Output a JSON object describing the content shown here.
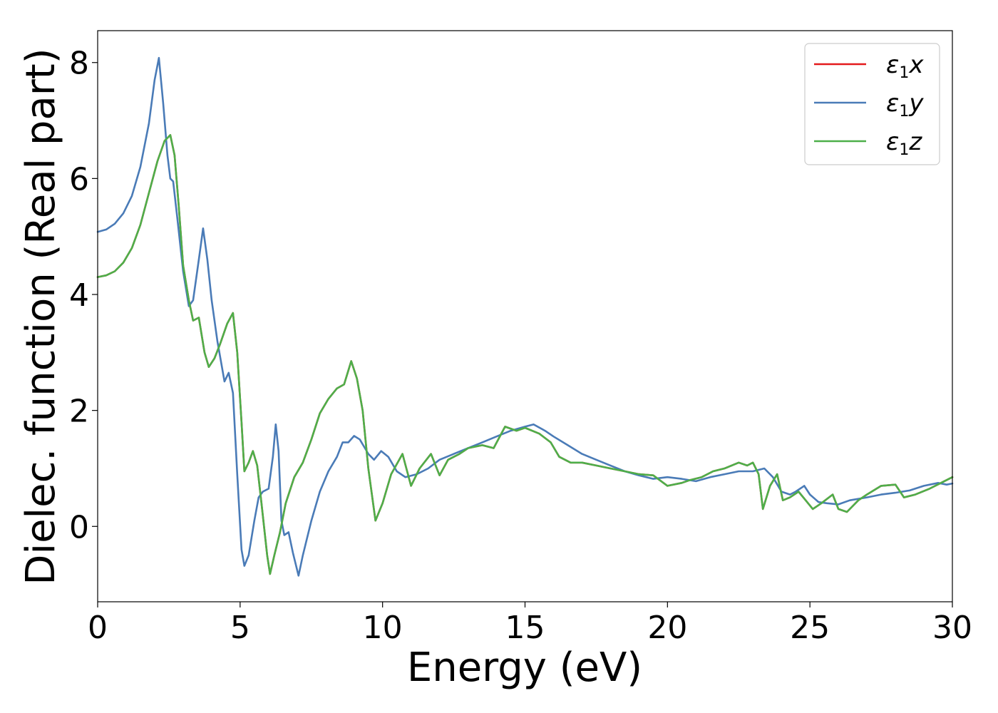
{
  "chart_data": {
    "type": "line",
    "xlabel": "Energy (eV)",
    "ylabel": "Dielec. function (Real part)",
    "xlim": [
      0,
      30
    ],
    "ylim": [
      -1.3,
      8.55
    ],
    "xticks": [
      0,
      5,
      10,
      15,
      20,
      25,
      30
    ],
    "yticks": [
      0,
      2,
      4,
      6,
      8
    ],
    "grid": false,
    "legend_position": "top-right",
    "series": [
      {
        "name": "ε1x",
        "legend_base": "ε",
        "legend_sub": "1",
        "legend_var": "x",
        "color": "#e41a1c",
        "ref": "s2"
      },
      {
        "name": "ε1y",
        "legend_base": "ε",
        "legend_sub": "1",
        "legend_var": "y",
        "color": "#4a7bb7",
        "points": [
          [
            0,
            5.08
          ],
          [
            0.3,
            5.12
          ],
          [
            0.6,
            5.22
          ],
          [
            0.9,
            5.4
          ],
          [
            1.2,
            5.7
          ],
          [
            1.5,
            6.2
          ],
          [
            1.8,
            6.95
          ],
          [
            2.0,
            7.7
          ],
          [
            2.15,
            8.08
          ],
          [
            2.3,
            7.3
          ],
          [
            2.45,
            6.4
          ],
          [
            2.55,
            6.0
          ],
          [
            2.65,
            5.95
          ],
          [
            2.8,
            5.3
          ],
          [
            3.0,
            4.4
          ],
          [
            3.2,
            3.8
          ],
          [
            3.35,
            3.9
          ],
          [
            3.55,
            4.6
          ],
          [
            3.7,
            5.14
          ],
          [
            3.85,
            4.6
          ],
          [
            4.0,
            3.9
          ],
          [
            4.2,
            3.2
          ],
          [
            4.45,
            2.5
          ],
          [
            4.6,
            2.65
          ],
          [
            4.75,
            2.3
          ],
          [
            4.9,
            0.9
          ],
          [
            5.05,
            -0.4
          ],
          [
            5.15,
            -0.68
          ],
          [
            5.3,
            -0.5
          ],
          [
            5.5,
            0.1
          ],
          [
            5.65,
            0.5
          ],
          [
            5.8,
            0.6
          ],
          [
            6.0,
            0.65
          ],
          [
            6.15,
            1.2
          ],
          [
            6.25,
            1.76
          ],
          [
            6.35,
            1.3
          ],
          [
            6.45,
            0.1
          ],
          [
            6.55,
            -0.15
          ],
          [
            6.7,
            -0.1
          ],
          [
            6.85,
            -0.45
          ],
          [
            7.05,
            -0.85
          ],
          [
            7.2,
            -0.5
          ],
          [
            7.5,
            0.1
          ],
          [
            7.8,
            0.6
          ],
          [
            8.1,
            0.95
          ],
          [
            8.4,
            1.2
          ],
          [
            8.6,
            1.45
          ],
          [
            8.8,
            1.45
          ],
          [
            9.0,
            1.56
          ],
          [
            9.2,
            1.5
          ],
          [
            9.5,
            1.25
          ],
          [
            9.7,
            1.15
          ],
          [
            9.95,
            1.3
          ],
          [
            10.2,
            1.2
          ],
          [
            10.5,
            0.95
          ],
          [
            10.8,
            0.85
          ],
          [
            11.2,
            0.9
          ],
          [
            11.6,
            1.0
          ],
          [
            12.0,
            1.15
          ],
          [
            12.5,
            1.25
          ],
          [
            13.0,
            1.35
          ],
          [
            13.5,
            1.45
          ],
          [
            14.0,
            1.55
          ],
          [
            14.5,
            1.65
          ],
          [
            15.0,
            1.72
          ],
          [
            15.3,
            1.76
          ],
          [
            15.7,
            1.65
          ],
          [
            16.0,
            1.55
          ],
          [
            16.5,
            1.4
          ],
          [
            17.0,
            1.25
          ],
          [
            17.5,
            1.15
          ],
          [
            18.0,
            1.05
          ],
          [
            18.5,
            0.95
          ],
          [
            19.0,
            0.88
          ],
          [
            19.5,
            0.82
          ],
          [
            20.0,
            0.85
          ],
          [
            20.5,
            0.82
          ],
          [
            21.0,
            0.78
          ],
          [
            21.5,
            0.85
          ],
          [
            22.0,
            0.9
          ],
          [
            22.5,
            0.95
          ],
          [
            23.0,
            0.95
          ],
          [
            23.4,
            1.0
          ],
          [
            23.7,
            0.85
          ],
          [
            24.0,
            0.6
          ],
          [
            24.3,
            0.55
          ],
          [
            24.5,
            0.6
          ],
          [
            24.8,
            0.7
          ],
          [
            25.0,
            0.55
          ],
          [
            25.3,
            0.42
          ],
          [
            25.6,
            0.4
          ],
          [
            26.0,
            0.38
          ],
          [
            26.4,
            0.45
          ],
          [
            27.0,
            0.5
          ],
          [
            27.5,
            0.55
          ],
          [
            28.0,
            0.58
          ],
          [
            28.5,
            0.62
          ],
          [
            29.0,
            0.7
          ],
          [
            29.5,
            0.75
          ],
          [
            29.8,
            0.72
          ],
          [
            30.0,
            0.74
          ]
        ]
      },
      {
        "name": "ε1z",
        "legend_base": "ε",
        "legend_sub": "1",
        "legend_var": "z",
        "color": "#4daf4a",
        "points": [
          [
            0,
            4.3
          ],
          [
            0.3,
            4.33
          ],
          [
            0.6,
            4.4
          ],
          [
            0.9,
            4.55
          ],
          [
            1.2,
            4.8
          ],
          [
            1.5,
            5.2
          ],
          [
            1.8,
            5.75
          ],
          [
            2.1,
            6.3
          ],
          [
            2.35,
            6.65
          ],
          [
            2.55,
            6.75
          ],
          [
            2.7,
            6.4
          ],
          [
            2.85,
            5.5
          ],
          [
            3.0,
            4.5
          ],
          [
            3.2,
            3.9
          ],
          [
            3.35,
            3.55
          ],
          [
            3.55,
            3.6
          ],
          [
            3.75,
            3.0
          ],
          [
            3.9,
            2.75
          ],
          [
            4.1,
            2.9
          ],
          [
            4.3,
            3.15
          ],
          [
            4.55,
            3.5
          ],
          [
            4.75,
            3.68
          ],
          [
            4.9,
            3.0
          ],
          [
            5.05,
            1.8
          ],
          [
            5.15,
            0.95
          ],
          [
            5.3,
            1.1
          ],
          [
            5.45,
            1.3
          ],
          [
            5.6,
            1.05
          ],
          [
            5.75,
            0.4
          ],
          [
            5.95,
            -0.5
          ],
          [
            6.05,
            -0.82
          ],
          [
            6.2,
            -0.5
          ],
          [
            6.4,
            -0.1
          ],
          [
            6.6,
            0.4
          ],
          [
            6.9,
            0.85
          ],
          [
            7.2,
            1.1
          ],
          [
            7.5,
            1.5
          ],
          [
            7.8,
            1.95
          ],
          [
            8.1,
            2.2
          ],
          [
            8.4,
            2.38
          ],
          [
            8.65,
            2.45
          ],
          [
            8.9,
            2.85
          ],
          [
            9.1,
            2.55
          ],
          [
            9.3,
            2.0
          ],
          [
            9.5,
            1.0
          ],
          [
            9.75,
            0.1
          ],
          [
            10.0,
            0.4
          ],
          [
            10.3,
            0.9
          ],
          [
            10.7,
            1.25
          ],
          [
            11.0,
            0.7
          ],
          [
            11.3,
            1.0
          ],
          [
            11.7,
            1.25
          ],
          [
            12.0,
            0.88
          ],
          [
            12.3,
            1.15
          ],
          [
            12.7,
            1.25
          ],
          [
            13.0,
            1.35
          ],
          [
            13.5,
            1.4
          ],
          [
            13.9,
            1.35
          ],
          [
            14.3,
            1.72
          ],
          [
            14.7,
            1.65
          ],
          [
            15.0,
            1.7
          ],
          [
            15.5,
            1.6
          ],
          [
            15.9,
            1.45
          ],
          [
            16.2,
            1.2
          ],
          [
            16.6,
            1.1
          ],
          [
            17.0,
            1.1
          ],
          [
            17.5,
            1.05
          ],
          [
            18.0,
            1.0
          ],
          [
            18.5,
            0.95
          ],
          [
            19.0,
            0.9
          ],
          [
            19.5,
            0.88
          ],
          [
            20.0,
            0.7
          ],
          [
            20.5,
            0.75
          ],
          [
            20.8,
            0.8
          ],
          [
            21.2,
            0.85
          ],
          [
            21.6,
            0.95
          ],
          [
            22.0,
            1.0
          ],
          [
            22.5,
            1.1
          ],
          [
            22.8,
            1.05
          ],
          [
            23.0,
            1.1
          ],
          [
            23.2,
            0.9
          ],
          [
            23.35,
            0.3
          ],
          [
            23.6,
            0.7
          ],
          [
            23.85,
            0.9
          ],
          [
            24.05,
            0.45
          ],
          [
            24.3,
            0.5
          ],
          [
            24.6,
            0.6
          ],
          [
            24.85,
            0.45
          ],
          [
            25.1,
            0.3
          ],
          [
            25.4,
            0.4
          ],
          [
            25.8,
            0.55
          ],
          [
            26.0,
            0.3
          ],
          [
            26.3,
            0.25
          ],
          [
            26.7,
            0.45
          ],
          [
            27.0,
            0.55
          ],
          [
            27.5,
            0.7
          ],
          [
            28.0,
            0.72
          ],
          [
            28.3,
            0.5
          ],
          [
            28.7,
            0.55
          ],
          [
            29.2,
            0.65
          ],
          [
            29.6,
            0.75
          ],
          [
            30.0,
            0.85
          ]
        ]
      }
    ]
  }
}
